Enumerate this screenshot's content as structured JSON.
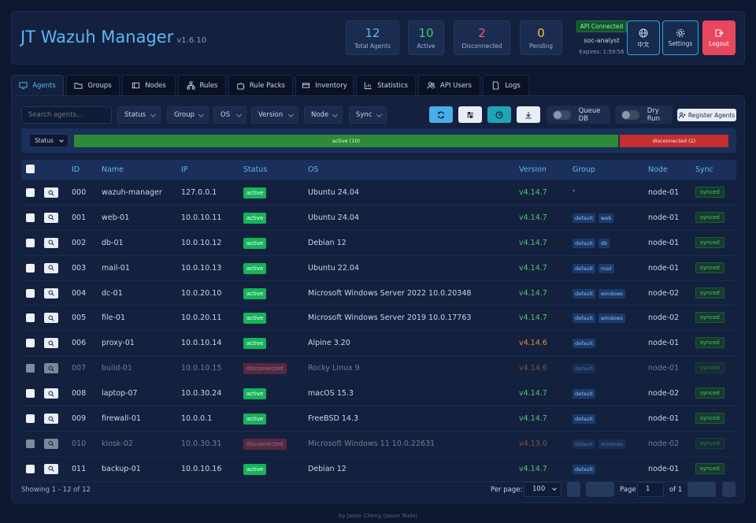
{
  "header": {
    "title": "JT Wazuh Manager",
    "version": "v1.6.10",
    "stats": [
      {
        "value": "12",
        "label": "Total Agents",
        "color": "#5db7f2"
      },
      {
        "value": "10",
        "label": "Active",
        "color": "#42c768"
      },
      {
        "value": "2",
        "label": "Disconnected",
        "color": "#ef5b72"
      },
      {
        "value": "0",
        "label": "Pending",
        "color": "#f2c23a"
      }
    ],
    "api": {
      "status": "API Connected",
      "user": "soc-analyst",
      "expires": "Expires: 1:59:56"
    },
    "lang_label": "中文",
    "settings_label": "Settings",
    "logout_label": "Logout"
  },
  "tabs": [
    {
      "label": "Agents",
      "icon": "monitor-icon"
    },
    {
      "label": "Groups",
      "icon": "folder-icon"
    },
    {
      "label": "Nodes",
      "icon": "server-icon"
    },
    {
      "label": "Rules",
      "icon": "hierarchy-icon"
    },
    {
      "label": "Rule Packs",
      "icon": "puzzle-icon"
    },
    {
      "label": "Inventory",
      "icon": "box-icon"
    },
    {
      "label": "Statistics",
      "icon": "bar-chart-icon"
    },
    {
      "label": "API Users",
      "icon": "users-icon"
    },
    {
      "label": "Logs",
      "icon": "file-icon"
    }
  ],
  "toolbar": {
    "search_placeholder": "Search agents...",
    "filters": [
      "Status",
      "Group",
      "OS",
      "Version",
      "Node",
      "Sync"
    ],
    "queue_db_label": "Queue DB",
    "dry_run_label": "Dry Run",
    "register_label": "Register Agents"
  },
  "statusbar": {
    "select_value": "Status",
    "segments": [
      {
        "label": "active (10)",
        "count": 10
      },
      {
        "label": "disconnected (2)",
        "count": 2
      }
    ]
  },
  "table": {
    "columns": [
      "ID",
      "Name",
      "IP",
      "Status",
      "OS",
      "Version",
      "Group",
      "Node",
      "Sync"
    ],
    "rows": [
      {
        "id": "000",
        "name": "wazuh-manager",
        "ip": "127.0.0.1",
        "status": "active",
        "os": "Ubuntu 24.04",
        "version": "v4.14.7",
        "groups": [],
        "group_text": "-",
        "node": "node-01",
        "sync": "synced"
      },
      {
        "id": "001",
        "name": "web-01",
        "ip": "10.0.10.11",
        "status": "active",
        "os": "Ubuntu 24.04",
        "version": "v4.14.7",
        "groups": [
          "default",
          "web"
        ],
        "node": "node-01",
        "sync": "synced"
      },
      {
        "id": "002",
        "name": "db-01",
        "ip": "10.0.10.12",
        "status": "active",
        "os": "Debian 12",
        "version": "v4.14.7",
        "groups": [
          "default",
          "db"
        ],
        "node": "node-01",
        "sync": "synced"
      },
      {
        "id": "003",
        "name": "mail-01",
        "ip": "10.0.10.13",
        "status": "active",
        "os": "Ubuntu 22.04",
        "version": "v4.14.7",
        "groups": [
          "default",
          "mail"
        ],
        "node": "node-01",
        "sync": "synced"
      },
      {
        "id": "004",
        "name": "dc-01",
        "ip": "10.0.20.10",
        "status": "active",
        "os": "Microsoft Windows Server 2022 10.0.20348",
        "version": "v4.14.7",
        "groups": [
          "default",
          "windows"
        ],
        "node": "node-02",
        "sync": "synced"
      },
      {
        "id": "005",
        "name": "file-01",
        "ip": "10.0.20.11",
        "status": "active",
        "os": "Microsoft Windows Server 2019 10.0.17763",
        "version": "v4.14.7",
        "groups": [
          "default",
          "windows"
        ],
        "node": "node-02",
        "sync": "synced"
      },
      {
        "id": "006",
        "name": "proxy-01",
        "ip": "10.0.10.14",
        "status": "active",
        "os": "Alpine 3.20",
        "version": "v4.14.6",
        "groups": [
          "default"
        ],
        "node": "node-01",
        "sync": "synced"
      },
      {
        "id": "007",
        "name": "build-01",
        "ip": "10.0.10.15",
        "status": "disconnected",
        "os": "Rocky Linux 9",
        "version": "v4.14.6",
        "groups": [
          "default"
        ],
        "node": "node-01",
        "sync": "synced"
      },
      {
        "id": "008",
        "name": "laptop-07",
        "ip": "10.0.30.24",
        "status": "active",
        "os": "macOS 15.3",
        "version": "v4.14.7",
        "groups": [
          "default"
        ],
        "node": "node-02",
        "sync": "synced"
      },
      {
        "id": "009",
        "name": "firewall-01",
        "ip": "10.0.0.1",
        "status": "active",
        "os": "FreeBSD 14.3",
        "version": "v4.14.7",
        "groups": [
          "default"
        ],
        "node": "node-01",
        "sync": "synced"
      },
      {
        "id": "010",
        "name": "kiosk-02",
        "ip": "10.0.30.31",
        "status": "disconnected",
        "os": "Microsoft Windows 11 10.0.22631",
        "version": "v4.13.0",
        "groups": [
          "default",
          "windows"
        ],
        "node": "node-02",
        "sync": "synced"
      },
      {
        "id": "011",
        "name": "backup-01",
        "ip": "10.0.10.16",
        "status": "active",
        "os": "Debian 12",
        "version": "v4.14.7",
        "groups": [
          "default"
        ],
        "node": "node-01",
        "sync": "synced"
      }
    ]
  },
  "footer": {
    "showing": "Showing 1 - 12 of 12",
    "per_page_label": "Per page:",
    "per_page_value": "100",
    "page_label": "Page",
    "page_value": "1",
    "page_of": "of 1",
    "credit": "by Jason Cheng (Jason Tools)"
  },
  "colors": {
    "accent": "#5db7f2",
    "active": "#16b35b",
    "disconnected": "#9b3040",
    "version_current": "#56c46a",
    "version_outdated": "#e8883a"
  }
}
